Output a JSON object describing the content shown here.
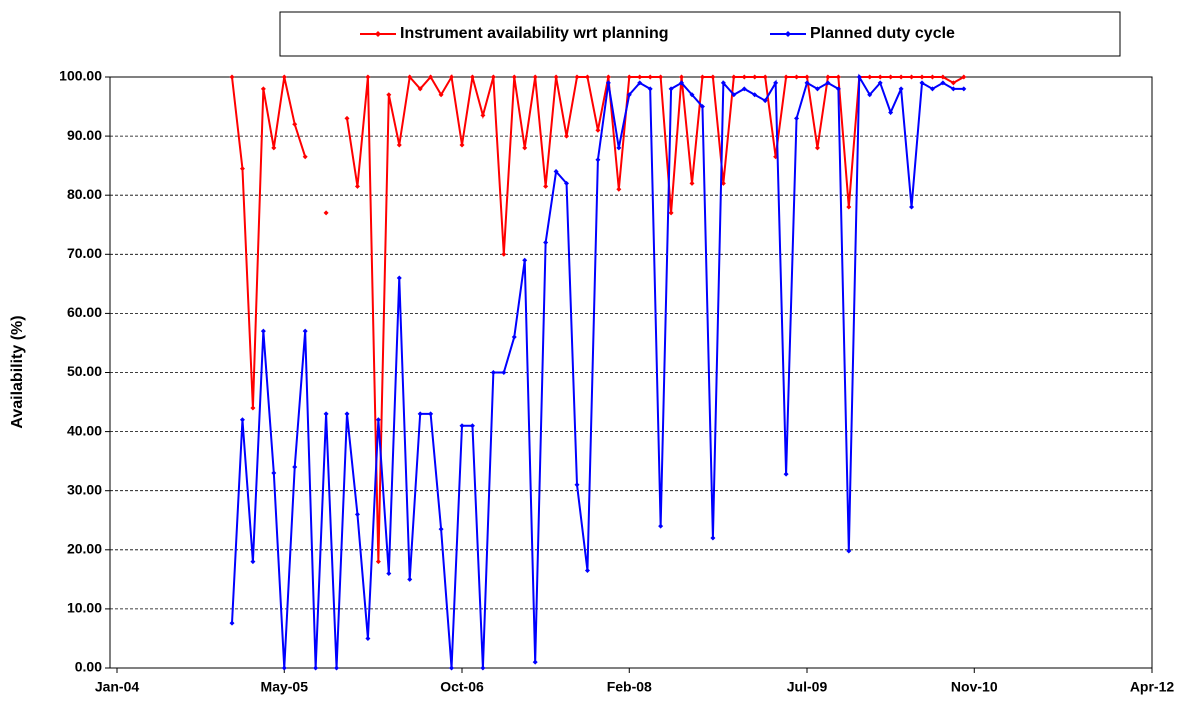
{
  "chart_data": {
    "type": "line",
    "y_label": "Availability (%)",
    "x": [
      "2004-12",
      "2005-01",
      "2005-02",
      "2005-03",
      "2005-04",
      "2005-05",
      "2005-06",
      "2005-07",
      "2005-08",
      "2005-09",
      "2005-10",
      "2005-11",
      "2005-12",
      "2006-01",
      "2006-02",
      "2006-03",
      "2006-04",
      "2006-05",
      "2006-06",
      "2006-07",
      "2006-08",
      "2006-09",
      "2006-10",
      "2006-11",
      "2006-12",
      "2007-01",
      "2007-02",
      "2007-03",
      "2007-04",
      "2007-05",
      "2007-06",
      "2007-07",
      "2007-08",
      "2007-09",
      "2007-10",
      "2007-11",
      "2007-12",
      "2008-01",
      "2008-02",
      "2008-03",
      "2008-04",
      "2008-05",
      "2008-06",
      "2008-07",
      "2008-08",
      "2008-09",
      "2008-10",
      "2008-11",
      "2008-12",
      "2009-01",
      "2009-02",
      "2009-03",
      "2009-04",
      "2009-05",
      "2009-06",
      "2009-07",
      "2009-08",
      "2009-09",
      "2009-10",
      "2009-11",
      "2009-12",
      "2010-01",
      "2010-02",
      "2010-03",
      "2010-04",
      "2010-05",
      "2010-06",
      "2010-07",
      "2010-08",
      "2010-09",
      "2010-10"
    ],
    "series": [
      {
        "name": "Instrument availability wrt planning",
        "color": "#ff0000",
        "values": [
          100,
          84.5,
          44,
          98,
          88,
          100,
          92,
          86.5,
          null,
          77,
          null,
          93,
          81.5,
          100,
          18,
          97,
          88.5,
          100,
          98,
          100,
          97,
          100,
          88.5,
          100,
          93.5,
          100,
          70,
          100,
          88,
          100,
          81.5,
          100,
          90,
          100,
          100,
          91,
          100,
          81,
          100,
          100,
          100,
          100,
          77,
          100,
          82,
          100,
          100,
          82,
          100,
          100,
          100,
          100,
          86.5,
          100,
          100,
          100,
          88,
          100,
          100,
          78,
          100,
          100,
          100,
          100,
          100,
          100,
          100,
          100,
          100,
          99,
          100
        ]
      },
      {
        "name": "Planned duty cycle",
        "color": "#0000ff",
        "values": [
          7.6,
          42,
          18,
          57,
          33,
          0,
          34,
          57,
          0,
          43,
          0,
          43,
          26,
          5,
          42,
          16,
          66,
          15,
          43,
          43,
          23.5,
          0,
          41,
          41,
          0,
          50,
          50,
          56,
          69,
          1,
          72,
          84,
          82,
          31,
          16.5,
          86,
          99,
          88,
          97,
          99,
          98,
          24,
          98,
          99,
          97,
          95,
          22,
          99,
          97,
          98,
          97,
          96,
          99,
          32.8,
          93,
          99,
          98,
          99,
          98,
          19.8,
          100,
          97,
          99,
          94,
          98,
          78,
          99,
          98,
          99,
          98,
          98
        ]
      }
    ],
    "xlim": [
      "2004-01",
      "2012-04"
    ],
    "xticks": [
      {
        "value": "2004-01",
        "label": "Jan-04"
      },
      {
        "value": "2005-05",
        "label": "May-05"
      },
      {
        "value": "2006-10",
        "label": "Oct-06"
      },
      {
        "value": "2008-02",
        "label": "Feb-08"
      },
      {
        "value": "2009-07",
        "label": "Jul-09"
      },
      {
        "value": "2010-11",
        "label": "Nov-10"
      },
      {
        "value": "2012-04",
        "label": "Apr-12"
      }
    ],
    "ylim": [
      0,
      100
    ],
    "yticks": [
      {
        "value": 0,
        "label": "0.00"
      },
      {
        "value": 10,
        "label": "10.00"
      },
      {
        "value": 20,
        "label": "20.00"
      },
      {
        "value": 30,
        "label": "30.00"
      },
      {
        "value": 40,
        "label": "40.00"
      },
      {
        "value": 50,
        "label": "50.00"
      },
      {
        "value": 60,
        "label": "60.00"
      },
      {
        "value": 70,
        "label": "70.00"
      },
      {
        "value": 80,
        "label": "80.00"
      },
      {
        "value": 90,
        "label": "90.00"
      },
      {
        "value": 100,
        "label": "100.00"
      }
    ],
    "grid": true,
    "legend": "top"
  }
}
